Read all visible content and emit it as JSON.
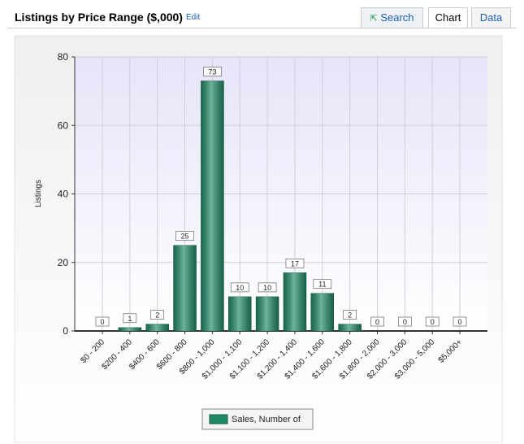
{
  "header": {
    "title": "Listings by Price Range ($,000)",
    "edit": "Edit",
    "tabs": [
      "Search",
      "Chart",
      "Data"
    ]
  },
  "chart_data": {
    "type": "bar",
    "y_label": "Listings",
    "categories": [
      "$0 - 200",
      "$200 - 400",
      "$400 - 600",
      "$600 - 800",
      "$800 - 1,000",
      "$1,000 - 1,100",
      "$1,100 - 1,200",
      "$1,200 - 1,400",
      "$1,400 - 1,600",
      "$1,600 - 1,800",
      "$1,800 - 2,000",
      "$2,000 - 3,000",
      "$3,000 - 5,000",
      "$5,000+"
    ],
    "series": [
      {
        "name": "Sales, Number of",
        "color": "#1f8a65",
        "values": [
          0,
          1,
          2,
          25,
          73,
          10,
          10,
          17,
          11,
          2,
          0,
          0,
          0,
          0
        ]
      }
    ],
    "ylim": [
      0,
      80
    ],
    "yticks": [
      0,
      20,
      40,
      60,
      80
    ],
    "grid": true,
    "legend": "bottom"
  }
}
